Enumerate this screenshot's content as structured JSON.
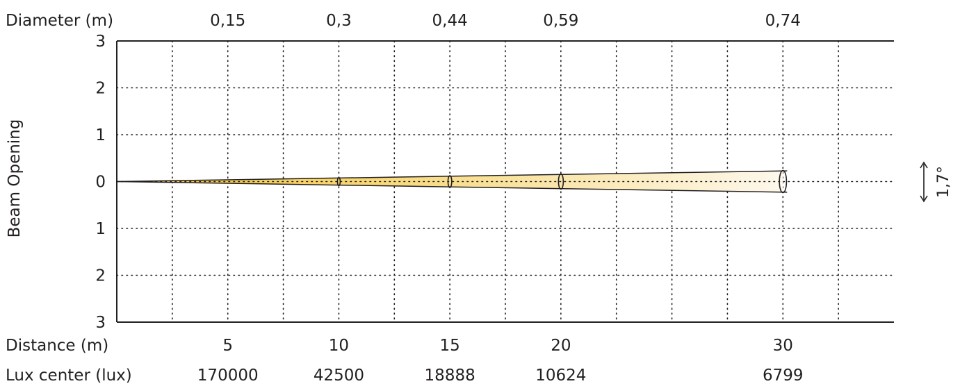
{
  "chart_data": {
    "type": "beam-diagram",
    "title": "",
    "ylabel": "Beam Opening",
    "y_ticks_top": [
      "3",
      "2",
      "1",
      "0"
    ],
    "y_ticks_bottom": [
      "1",
      "2",
      "3"
    ],
    "ylim": [
      -3,
      3
    ],
    "xlim": [
      0,
      35
    ],
    "grid": true,
    "beam_angle_label": "1,7°",
    "rows": {
      "diameter_label": "Diameter (m)",
      "distance_label": "Distance (m)",
      "lux_label": "Lux center (lux)"
    },
    "points": [
      {
        "distance": 5,
        "distance_label": "5",
        "diameter": "0,15",
        "lux": "170000"
      },
      {
        "distance": 10,
        "distance_label": "10",
        "diameter": "0,3",
        "lux": "42500"
      },
      {
        "distance": 15,
        "distance_label": "15",
        "diameter": "0,44",
        "lux": "18888"
      },
      {
        "distance": 20,
        "distance_label": "20",
        "diameter": "0,59",
        "lux": "10624"
      },
      {
        "distance": 30,
        "distance_label": "30",
        "diameter": "0,74",
        "lux": "6799"
      }
    ],
    "colors": {
      "line": "#231f20",
      "beam_start": "#f4c430",
      "beam_end": "#fdf8ec"
    }
  }
}
